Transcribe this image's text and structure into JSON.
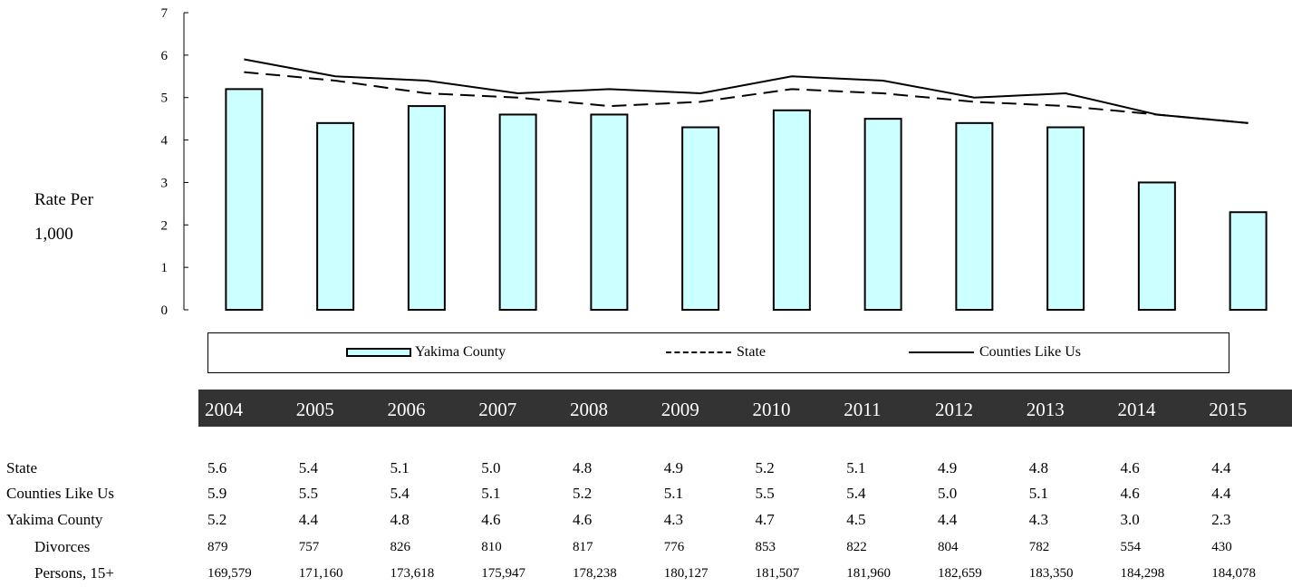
{
  "chart_data": {
    "type": "bar",
    "categories": [
      "2004",
      "2005",
      "2006",
      "2007",
      "2008",
      "2009",
      "2010",
      "2011",
      "2012",
      "2013",
      "2014",
      "2015"
    ],
    "series": [
      {
        "name": "Yakima County",
        "kind": "bar",
        "values": [
          5.2,
          4.4,
          4.8,
          4.6,
          4.6,
          4.3,
          4.7,
          4.5,
          4.4,
          4.3,
          3.0,
          2.3
        ],
        "color": "#ccffff"
      },
      {
        "name": "State",
        "kind": "line-dashed",
        "values": [
          5.6,
          5.4,
          5.1,
          5.0,
          4.8,
          4.9,
          5.2,
          5.1,
          4.9,
          4.8,
          4.6,
          4.4
        ],
        "color": "#000000"
      },
      {
        "name": "Counties Like Us",
        "kind": "line-solid",
        "values": [
          5.9,
          5.5,
          5.4,
          5.1,
          5.2,
          5.1,
          5.5,
          5.4,
          5.0,
          5.1,
          4.6,
          4.4
        ],
        "color": "#000000"
      }
    ],
    "ylabel_line1": "Rate Per",
    "ylabel_line2": "1,000",
    "ylim": [
      0,
      7
    ],
    "yticks": [
      "0",
      "1",
      "2",
      "3",
      "4",
      "5",
      "6",
      "7"
    ],
    "grid": false,
    "legend_position": "bottom"
  },
  "legend": {
    "bar_label": "Yakima County",
    "dashed_label": "State",
    "solid_label": "Counties Like Us"
  },
  "table": {
    "years": [
      "2004",
      "2005",
      "2006",
      "2007",
      "2008",
      "2009",
      "2010",
      "2011",
      "2012",
      "2013",
      "2014",
      "2015"
    ],
    "rows": [
      {
        "label": "State",
        "sub": false,
        "small": false,
        "values": [
          "5.6",
          "5.4",
          "5.1",
          "5.0",
          "4.8",
          "4.9",
          "5.2",
          "5.1",
          "4.9",
          "4.8",
          "4.6",
          "4.4"
        ]
      },
      {
        "label": "Counties Like Us",
        "sub": false,
        "small": false,
        "values": [
          "5.9",
          "5.5",
          "5.4",
          "5.1",
          "5.2",
          "5.1",
          "5.5",
          "5.4",
          "5.0",
          "5.1",
          "4.6",
          "4.4"
        ]
      },
      {
        "label": "Yakima County",
        "sub": false,
        "small": false,
        "values": [
          "5.2",
          "4.4",
          "4.8",
          "4.6",
          "4.6",
          "4.3",
          "4.7",
          "4.5",
          "4.4",
          "4.3",
          "3.0",
          "2.3"
        ]
      },
      {
        "label": "Divorces",
        "sub": true,
        "small": true,
        "values": [
          "879",
          "757",
          "826",
          "810",
          "817",
          "776",
          "853",
          "822",
          "804",
          "782",
          "554",
          "430"
        ]
      },
      {
        "label": "Persons, 15+",
        "sub": true,
        "small": true,
        "values": [
          "169,579",
          "171,160",
          "173,618",
          "175,947",
          "178,238",
          "180,127",
          "181,507",
          "181,960",
          "182,659",
          "183,350",
          "184,298",
          "184,078"
        ]
      }
    ]
  }
}
